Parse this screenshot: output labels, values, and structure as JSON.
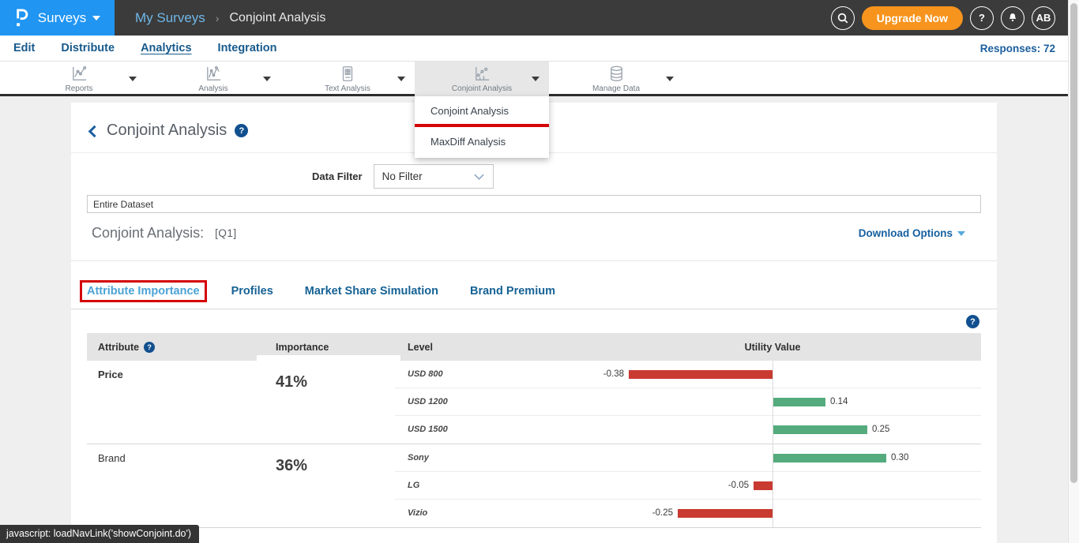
{
  "topbar": {
    "logo_label": "Surveys",
    "breadcrumb": {
      "parent": "My Surveys",
      "separator": "›",
      "current": "Conjoint Analysis"
    },
    "upgrade_label": "Upgrade Now",
    "help_glyph": "?",
    "avatar_initials": "AB"
  },
  "nav": {
    "items": [
      "Edit",
      "Distribute",
      "Analytics",
      "Integration"
    ],
    "active": "Analytics",
    "responses_label": "Responses: 72"
  },
  "toolbar": {
    "items": [
      {
        "label": "Reports",
        "icon": "reports-chart-icon"
      },
      {
        "label": "Analysis",
        "icon": "analysis-chart-icon"
      },
      {
        "label": "Text Analysis",
        "icon": "text-analysis-icon"
      },
      {
        "label": "Conjoint Analysis",
        "icon": "conjoint-analysis-icon"
      },
      {
        "label": "Manage Data",
        "icon": "manage-data-icon"
      }
    ],
    "active": "Conjoint Analysis"
  },
  "dropdown": {
    "items": [
      "Conjoint Analysis",
      "MaxDiff Analysis"
    ],
    "annotated_item": "Conjoint Analysis"
  },
  "main": {
    "title": "Conjoint Analysis",
    "data_filter": {
      "label": "Data Filter",
      "value": "No Filter"
    },
    "dataset_value": "Entire Dataset",
    "section": {
      "title": "Conjoint Analysis:",
      "question": "[Q1]"
    },
    "download_label": "Download Options",
    "tabs": [
      "Attribute Importance",
      "Profiles",
      "Market Share Simulation",
      "Brand Premium"
    ],
    "active_tab": "Attribute Importance"
  },
  "table": {
    "headers": [
      "Attribute",
      "Importance",
      "Level",
      "Utility Value"
    ],
    "groups": [
      {
        "attribute": "Price",
        "importance": "41%",
        "levels": [
          {
            "name": "USD 800",
            "value": -0.38,
            "label": "-0.38"
          },
          {
            "name": "USD 1200",
            "value": 0.14,
            "label": "0.14"
          },
          {
            "name": "USD 1500",
            "value": 0.25,
            "label": "0.25"
          }
        ]
      },
      {
        "attribute": "Brand",
        "importance": "36%",
        "levels": [
          {
            "name": "Sony",
            "value": 0.3,
            "label": "0.30"
          },
          {
            "name": "LG",
            "value": -0.05,
            "label": "-0.05"
          },
          {
            "name": "Vizio",
            "value": -0.25,
            "label": "-0.25"
          }
        ]
      }
    ]
  },
  "statusbar": {
    "text": "javascript: loadNavLink('showConjoint.do')"
  },
  "colors": {
    "positive_bar": "#55ab7d",
    "negative_bar": "#c93a31",
    "annotation_red": "#d40404",
    "accent_blue": "#2095f2",
    "upgrade_orange": "#f7941e",
    "nav_link_blue": "#175a8c",
    "topbar_dark": "#3b3b3b"
  }
}
